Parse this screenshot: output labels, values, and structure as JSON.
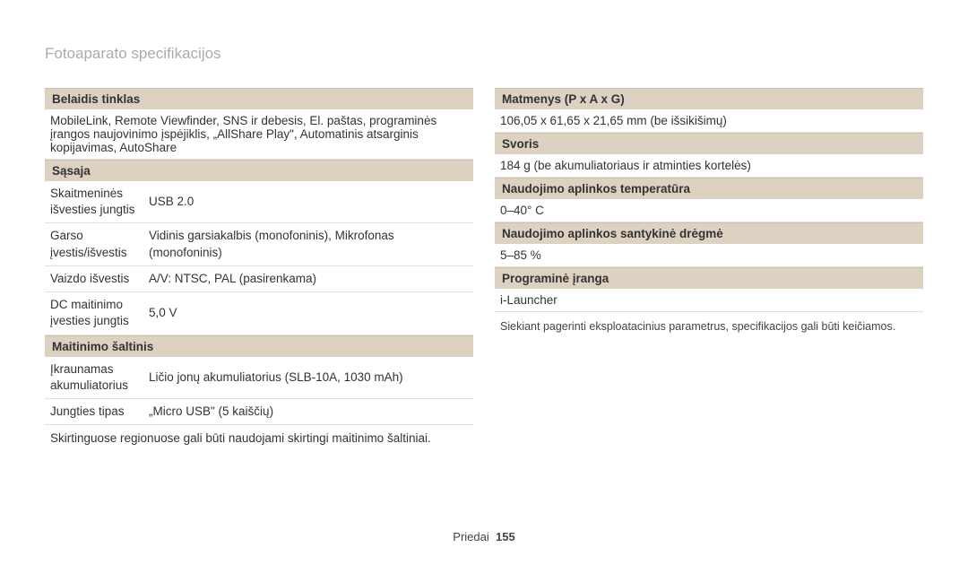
{
  "page_title": "Fotoaparato specifikacijos",
  "left": {
    "wireless": {
      "header": "Belaidis tinklas",
      "value": "MobileLink, Remote Viewfinder, SNS ir debesis, El. paštas, programinės įrangos naujovinimo įspėjiklis, „AllShare Play\", Automatinis atsarginis kopijavimas, AutoShare"
    },
    "interface": {
      "header": "Sąsaja",
      "rows": [
        {
          "label": "Skaitmeninės išvesties jungtis",
          "value": "USB 2.0"
        },
        {
          "label": "Garso įvestis/išvestis",
          "value": "Vidinis garsiakalbis (monofoninis), Mikrofonas (monofoninis)"
        },
        {
          "label": "Vaizdo išvestis",
          "value": "A/V: NTSC, PAL (pasirenkama)"
        },
        {
          "label": "DC maitinimo įvesties jungtis",
          "value": "5,0 V"
        }
      ]
    },
    "power": {
      "header": "Maitinimo šaltinis",
      "rows": [
        {
          "label": "Įkraunamas akumuliatorius",
          "value": "Ličio jonų akumuliatorius (SLB-10A, 1030 mAh)"
        },
        {
          "label": "Jungties tipas",
          "value": "„Micro USB\" (5 kaiščių)"
        }
      ],
      "note": "Skirtinguose regionuose gali būti naudojami skirtingi maitinimo šaltiniai."
    }
  },
  "right": {
    "dimensions": {
      "header": "Matmenys (P x A x G)",
      "value": "106,05 x 61,65 x 21,65 mm (be išsikišimų)"
    },
    "weight": {
      "header": "Svoris",
      "value": "184 g (be akumuliatoriaus ir atminties kortelės)"
    },
    "temp": {
      "header": "Naudojimo aplinkos temperatūra",
      "value": "0–40° C"
    },
    "humidity": {
      "header": "Naudojimo aplinkos santykinė drėgmė",
      "value": "5–85 %"
    },
    "software": {
      "header": "Programinė įranga",
      "value": "i-Launcher"
    },
    "note": "Siekiant pagerinti eksploatacinius parametrus, specifikacijos gali būti keičiamos."
  },
  "footer": {
    "label": "Priedai",
    "page": "155"
  },
  "colors": {
    "header_bg": "#ddd2c1",
    "row_border": "#e6e0d6",
    "title_color": "#b0aaa5"
  }
}
